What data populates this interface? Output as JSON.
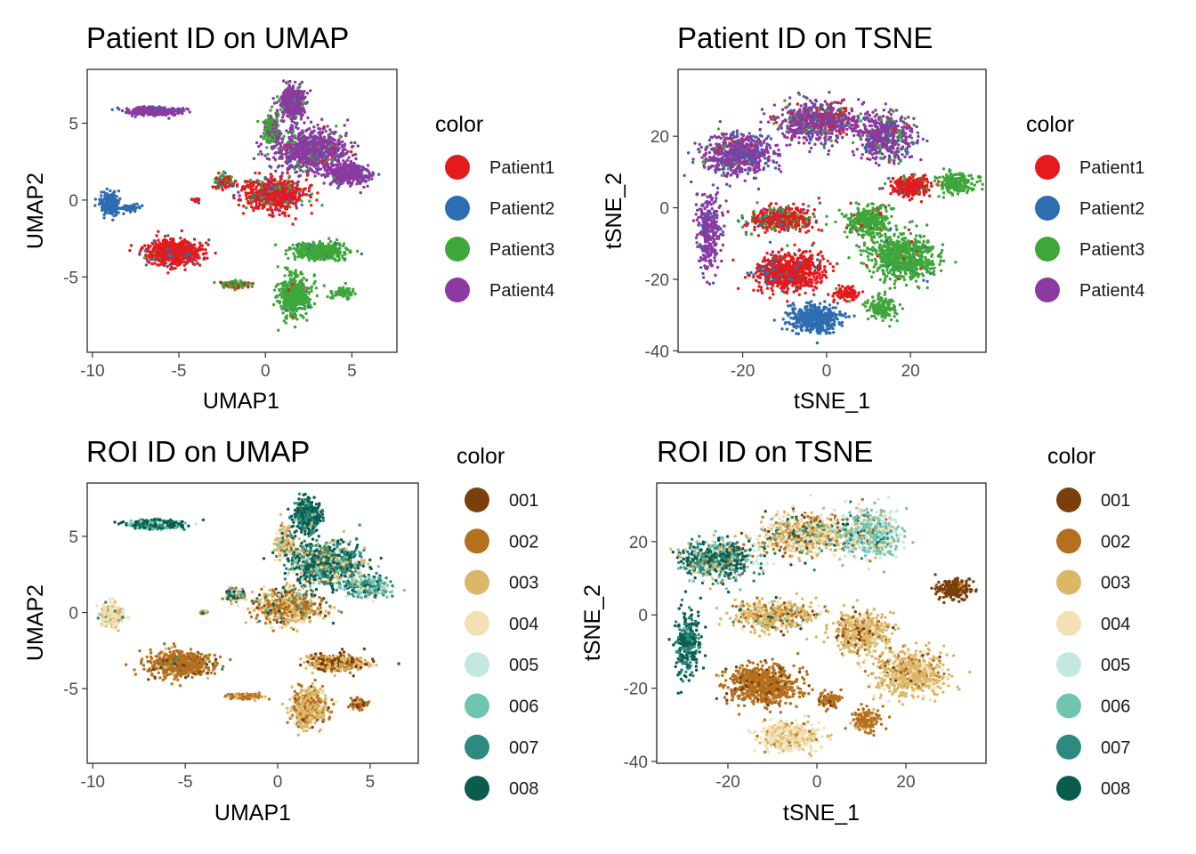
{
  "chart_data": [
    {
      "type": "scatter",
      "title": "Patient ID on UMAP",
      "xlabel": "UMAP1",
      "ylabel": "UMAP2",
      "xlim": [
        -10.3,
        7.6
      ],
      "ylim": [
        -9.9,
        8.5
      ],
      "xticks": [
        -10,
        -5,
        0,
        5
      ],
      "yticks": [
        -5,
        0,
        5
      ],
      "legend": {
        "title": "color",
        "position": "right"
      },
      "categories": [
        "Patient1",
        "Patient2",
        "Patient3",
        "Patient4"
      ],
      "colors": [
        "#e41a1c",
        "#2e6db0",
        "#3fa63a",
        "#8a3aa0"
      ],
      "clusters": [
        {
          "x": -6.5,
          "y": 5.8,
          "sx": 1.3,
          "sy": 0.25,
          "n": 380,
          "mix": [
            0,
            0.05,
            0,
            0.95
          ]
        },
        {
          "x": -9.0,
          "y": -0.2,
          "sx": 0.5,
          "sy": 0.6,
          "n": 260,
          "mix": [
            0,
            1,
            0,
            0
          ]
        },
        {
          "x": -7.8,
          "y": -0.5,
          "sx": 0.4,
          "sy": 0.2,
          "n": 60,
          "mix": [
            0,
            1,
            0,
            0
          ]
        },
        {
          "x": -5.3,
          "y": -3.4,
          "sx": 1.5,
          "sy": 0.75,
          "n": 650,
          "mix": [
            0.88,
            0.1,
            0.02,
            0
          ]
        },
        {
          "x": -4.0,
          "y": 0.0,
          "sx": 0.2,
          "sy": 0.12,
          "n": 25,
          "mix": [
            0.85,
            0.15,
            0,
            0
          ]
        },
        {
          "x": -2.4,
          "y": 1.2,
          "sx": 0.5,
          "sy": 0.4,
          "n": 120,
          "mix": [
            0.55,
            0.05,
            0.4,
            0
          ]
        },
        {
          "x": 0.5,
          "y": 0.4,
          "sx": 1.6,
          "sy": 1.0,
          "n": 700,
          "mix": [
            0.75,
            0.05,
            0.12,
            0.08
          ]
        },
        {
          "x": 1.6,
          "y": 6.3,
          "sx": 0.6,
          "sy": 0.9,
          "n": 480,
          "mix": [
            0,
            0.02,
            0.08,
            0.9
          ]
        },
        {
          "x": 0.4,
          "y": 4.6,
          "sx": 0.45,
          "sy": 0.9,
          "n": 200,
          "mix": [
            0,
            0,
            0.75,
            0.25
          ]
        },
        {
          "x": 2.6,
          "y": 3.2,
          "sx": 1.8,
          "sy": 1.2,
          "n": 900,
          "mix": [
            0.02,
            0.02,
            0.1,
            0.86
          ]
        },
        {
          "x": 4.8,
          "y": 1.7,
          "sx": 1.0,
          "sy": 0.55,
          "n": 420,
          "mix": [
            0,
            0.05,
            0.03,
            0.92
          ]
        },
        {
          "x": 3.1,
          "y": -3.3,
          "sx": 1.4,
          "sy": 0.45,
          "n": 460,
          "mix": [
            0,
            0.03,
            0.97,
            0
          ]
        },
        {
          "x": 1.7,
          "y": -6.2,
          "sx": 0.9,
          "sy": 1.2,
          "n": 450,
          "mix": [
            0.01,
            0.02,
            0.97,
            0
          ]
        },
        {
          "x": 4.4,
          "y": -6.0,
          "sx": 0.5,
          "sy": 0.3,
          "n": 80,
          "mix": [
            0,
            0,
            1,
            0
          ]
        },
        {
          "x": -1.8,
          "y": -5.5,
          "sx": 0.8,
          "sy": 0.2,
          "n": 110,
          "mix": [
            0.35,
            0,
            0.65,
            0
          ]
        }
      ]
    },
    {
      "type": "scatter",
      "title": "Patient ID on TSNE",
      "xlabel": "tSNE_1",
      "ylabel": "tSNE_2",
      "xlim": [
        -35.4,
        38.0
      ],
      "ylim": [
        -40.4,
        38.7
      ],
      "xticks": [
        -20,
        0,
        20
      ],
      "yticks": [
        -40,
        -20,
        0,
        20
      ],
      "legend": {
        "title": "color",
        "position": "right"
      },
      "categories": [
        "Patient1",
        "Patient2",
        "Patient3",
        "Patient4"
      ],
      "colors": [
        "#e41a1c",
        "#2e6db0",
        "#3fa63a",
        "#8a3aa0"
      ],
      "clusters": [
        {
          "x": -21,
          "y": 15,
          "sx": 7,
          "sy": 5,
          "n": 700,
          "mix": [
            0.03,
            0.12,
            0.05,
            0.8
          ]
        },
        {
          "x": -2,
          "y": 24,
          "sx": 9,
          "sy": 5,
          "n": 700,
          "mix": [
            0.12,
            0.08,
            0.08,
            0.72
          ]
        },
        {
          "x": 14,
          "y": 20,
          "sx": 6,
          "sy": 6,
          "n": 500,
          "mix": [
            0.02,
            0.12,
            0.14,
            0.72
          ]
        },
        {
          "x": -28,
          "y": -7,
          "sx": 2.5,
          "sy": 9,
          "n": 320,
          "mix": [
            0,
            0.1,
            0,
            0.9
          ]
        },
        {
          "x": -9,
          "y": -18,
          "sx": 7,
          "sy": 4.5,
          "n": 800,
          "mix": [
            0.85,
            0.12,
            0.03,
            0
          ]
        },
        {
          "x": -11,
          "y": -3,
          "sx": 7,
          "sy": 3,
          "n": 450,
          "mix": [
            0.65,
            0.05,
            0.25,
            0.05
          ]
        },
        {
          "x": -3,
          "y": -31,
          "sx": 5.5,
          "sy": 3.5,
          "n": 450,
          "mix": [
            0,
            1,
            0,
            0
          ]
        },
        {
          "x": 20,
          "y": 6,
          "sx": 4,
          "sy": 2.5,
          "n": 300,
          "mix": [
            0.85,
            0.05,
            0.1,
            0
          ]
        },
        {
          "x": 10,
          "y": -4,
          "sx": 5,
          "sy": 4,
          "n": 350,
          "mix": [
            0.05,
            0.02,
            0.93,
            0
          ]
        },
        {
          "x": 18,
          "y": -14,
          "sx": 7,
          "sy": 6,
          "n": 650,
          "mix": [
            0.02,
            0.02,
            0.96,
            0
          ]
        },
        {
          "x": 31,
          "y": 7,
          "sx": 4,
          "sy": 2.5,
          "n": 200,
          "mix": [
            0,
            0,
            1,
            0
          ]
        },
        {
          "x": 13,
          "y": -28,
          "sx": 3,
          "sy": 3,
          "n": 150,
          "mix": [
            0,
            0,
            1,
            0
          ]
        },
        {
          "x": 5,
          "y": -24,
          "sx": 2.5,
          "sy": 2,
          "n": 90,
          "mix": [
            0.95,
            0,
            0.05,
            0
          ]
        }
      ]
    },
    {
      "type": "scatter",
      "title": "ROI ID on UMAP",
      "xlabel": "UMAP1",
      "ylabel": "UMAP2",
      "xlim": [
        -10.3,
        7.6
      ],
      "ylim": [
        -9.9,
        8.5
      ],
      "xticks": [
        -10,
        -5,
        0,
        5
      ],
      "yticks": [
        -5,
        0,
        5
      ],
      "legend": {
        "title": "color",
        "position": "right"
      },
      "categories": [
        "001",
        "002",
        "003",
        "004",
        "005",
        "006",
        "007",
        "008"
      ],
      "colors": [
        "#7b3f0c",
        "#b5701f",
        "#dbb768",
        "#f3e0b5",
        "#c3e7e1",
        "#72c4b2",
        "#2c8a7e",
        "#0a5c4f"
      ],
      "clusters": [
        {
          "x": -6.5,
          "y": 5.8,
          "sx": 1.3,
          "sy": 0.25,
          "n": 380,
          "mix": [
            0,
            0,
            0,
            0,
            0.1,
            0.2,
            0.2,
            0.5
          ]
        },
        {
          "x": -9.0,
          "y": -0.2,
          "sx": 0.55,
          "sy": 0.6,
          "n": 260,
          "mix": [
            0,
            0,
            0.2,
            0.7,
            0.05,
            0,
            0.05,
            0
          ]
        },
        {
          "x": -5.3,
          "y": -3.4,
          "sx": 1.5,
          "sy": 0.75,
          "n": 650,
          "mix": [
            0.08,
            0.8,
            0.07,
            0,
            0,
            0,
            0.02,
            0.03
          ]
        },
        {
          "x": -4.0,
          "y": 0.0,
          "sx": 0.2,
          "sy": 0.12,
          "n": 25,
          "mix": [
            0,
            0.3,
            0.4,
            0,
            0,
            0,
            0.2,
            0.1
          ]
        },
        {
          "x": -2.4,
          "y": 1.2,
          "sx": 0.5,
          "sy": 0.4,
          "n": 120,
          "mix": [
            0,
            0.1,
            0.2,
            0.1,
            0,
            0.1,
            0.2,
            0.3
          ]
        },
        {
          "x": 0.5,
          "y": 0.4,
          "sx": 1.6,
          "sy": 1.0,
          "n": 700,
          "mix": [
            0.05,
            0.35,
            0.35,
            0.15,
            0,
            0.02,
            0.03,
            0.05
          ]
        },
        {
          "x": 1.6,
          "y": 6.3,
          "sx": 0.6,
          "sy": 0.9,
          "n": 480,
          "mix": [
            0,
            0,
            0.05,
            0,
            0,
            0.05,
            0.25,
            0.65
          ]
        },
        {
          "x": 0.4,
          "y": 4.6,
          "sx": 0.45,
          "sy": 0.9,
          "n": 200,
          "mix": [
            0,
            0.05,
            0.5,
            0.3,
            0,
            0,
            0.1,
            0.05
          ]
        },
        {
          "x": 2.6,
          "y": 3.2,
          "sx": 1.8,
          "sy": 1.2,
          "n": 900,
          "mix": [
            0,
            0.05,
            0.12,
            0.08,
            0.05,
            0.1,
            0.3,
            0.3
          ]
        },
        {
          "x": 4.8,
          "y": 1.7,
          "sx": 1.0,
          "sy": 0.55,
          "n": 420,
          "mix": [
            0,
            0,
            0.05,
            0.05,
            0.15,
            0.35,
            0.3,
            0.1
          ]
        },
        {
          "x": 3.1,
          "y": -3.3,
          "sx": 1.4,
          "sy": 0.45,
          "n": 460,
          "mix": [
            0.3,
            0.2,
            0.45,
            0.05,
            0,
            0,
            0,
            0
          ]
        },
        {
          "x": 1.7,
          "y": -6.2,
          "sx": 0.9,
          "sy": 1.2,
          "n": 450,
          "mix": [
            0.05,
            0.3,
            0.6,
            0.05,
            0,
            0,
            0,
            0
          ]
        },
        {
          "x": 4.4,
          "y": -6.0,
          "sx": 0.5,
          "sy": 0.3,
          "n": 80,
          "mix": [
            0.3,
            0.6,
            0.1,
            0,
            0,
            0,
            0,
            0
          ]
        },
        {
          "x": -1.8,
          "y": -5.5,
          "sx": 0.8,
          "sy": 0.2,
          "n": 110,
          "mix": [
            0,
            0.6,
            0.35,
            0.05,
            0,
            0,
            0,
            0
          ]
        }
      ]
    },
    {
      "type": "scatter",
      "title": "ROI ID on TSNE",
      "xlabel": "tSNE_1",
      "ylabel": "tSNE_2",
      "xlim": [
        -36.0,
        38.0
      ],
      "ylim": [
        -40.5,
        36.0
      ],
      "xticks": [
        -20,
        0,
        20
      ],
      "yticks": [
        -40,
        -20,
        0,
        20
      ],
      "legend": {
        "title": "color",
        "position": "right"
      },
      "categories": [
        "001",
        "002",
        "003",
        "004",
        "005",
        "006",
        "007",
        "008"
      ],
      "colors": [
        "#7b3f0c",
        "#b5701f",
        "#dbb768",
        "#f3e0b5",
        "#c3e7e1",
        "#72c4b2",
        "#2c8a7e",
        "#0a5c4f"
      ],
      "clusters": [
        {
          "x": -22,
          "y": 15,
          "sx": 7,
          "sy": 5,
          "n": 700,
          "mix": [
            0,
            0.05,
            0.1,
            0.05,
            0.05,
            0.15,
            0.3,
            0.3
          ]
        },
        {
          "x": -3,
          "y": 22,
          "sx": 9,
          "sy": 5,
          "n": 700,
          "mix": [
            0.05,
            0.15,
            0.3,
            0.3,
            0.05,
            0.05,
            0.05,
            0.05
          ]
        },
        {
          "x": 12,
          "y": 22,
          "sx": 6,
          "sy": 6,
          "n": 500,
          "mix": [
            0,
            0.05,
            0.1,
            0.1,
            0.25,
            0.35,
            0.1,
            0.05
          ]
        },
        {
          "x": -29,
          "y": -8,
          "sx": 2.5,
          "sy": 8,
          "n": 320,
          "mix": [
            0,
            0,
            0,
            0,
            0,
            0.05,
            0.4,
            0.55
          ]
        },
        {
          "x": -12,
          "y": -19,
          "sx": 7,
          "sy": 4.5,
          "n": 800,
          "mix": [
            0.15,
            0.8,
            0.05,
            0,
            0,
            0,
            0,
            0
          ]
        },
        {
          "x": -10,
          "y": 0,
          "sx": 8,
          "sy": 3.5,
          "n": 500,
          "mix": [
            0.05,
            0.2,
            0.5,
            0.15,
            0,
            0.02,
            0.04,
            0.04
          ]
        },
        {
          "x": -6,
          "y": -33,
          "sx": 5.5,
          "sy": 3.5,
          "n": 450,
          "mix": [
            0,
            0.05,
            0.25,
            0.7,
            0,
            0,
            0,
            0
          ]
        },
        {
          "x": 10,
          "y": -5,
          "sx": 6,
          "sy": 5,
          "n": 450,
          "mix": [
            0.05,
            0.15,
            0.7,
            0.1,
            0,
            0,
            0,
            0
          ]
        },
        {
          "x": 21,
          "y": -16,
          "sx": 7,
          "sy": 6,
          "n": 600,
          "mix": [
            0.02,
            0.1,
            0.75,
            0.13,
            0,
            0,
            0,
            0
          ]
        },
        {
          "x": 31,
          "y": 7,
          "sx": 3.5,
          "sy": 2.5,
          "n": 200,
          "mix": [
            0.9,
            0.1,
            0,
            0,
            0,
            0,
            0,
            0
          ]
        },
        {
          "x": 11,
          "y": -29,
          "sx": 3,
          "sy": 3,
          "n": 150,
          "mix": [
            0,
            0.85,
            0.15,
            0,
            0,
            0,
            0,
            0
          ]
        },
        {
          "x": 3,
          "y": -23,
          "sx": 2.5,
          "sy": 2,
          "n": 90,
          "mix": [
            0.1,
            0.85,
            0.05,
            0,
            0,
            0,
            0,
            0
          ]
        }
      ]
    }
  ]
}
